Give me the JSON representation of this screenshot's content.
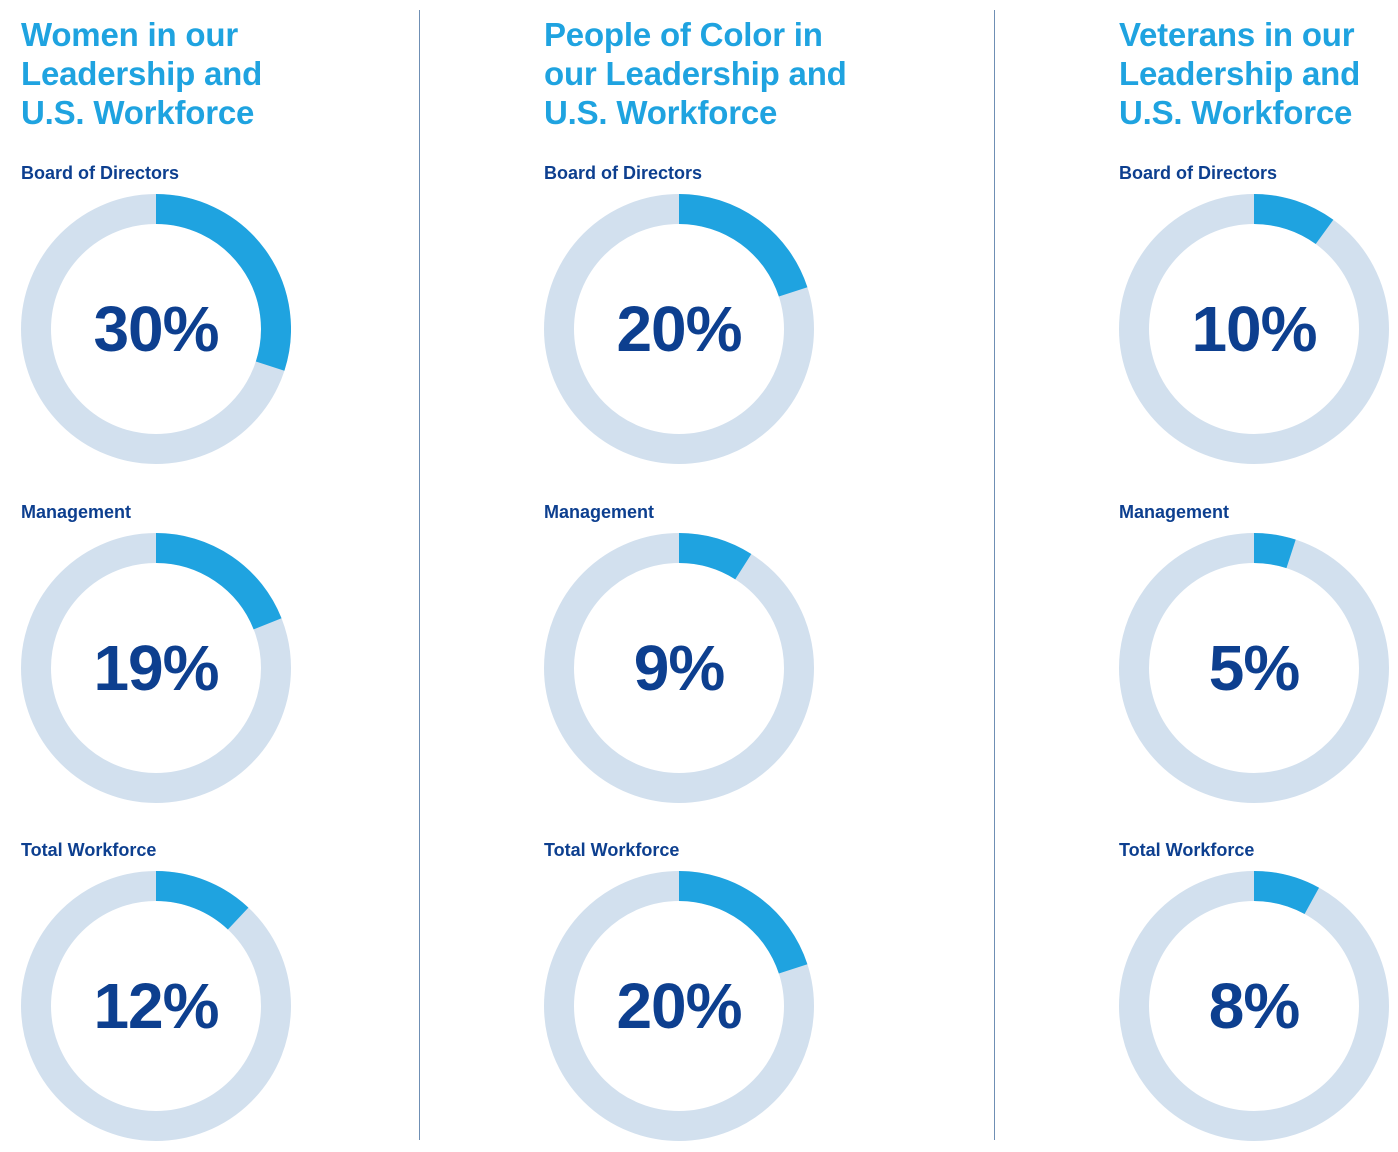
{
  "colors": {
    "title": "#1fa3e0",
    "label": "#0d3f8f",
    "value": "#0d3f8f",
    "track": "#d2e0ee",
    "fill": "#1fa3e0",
    "divider": "#6f8fb4"
  },
  "chart_data": [
    {
      "type": "donut",
      "title": "Women in our\nLeadership and\nU.S. Workforce",
      "categories": [
        "Board of Directors",
        "Management",
        "Total Workforce"
      ],
      "values": [
        30,
        19,
        12
      ],
      "value_labels": [
        "30%",
        "19%",
        "12%"
      ],
      "unit": "%",
      "ylim": [
        0,
        100
      ]
    },
    {
      "type": "donut",
      "title": "People of Color in\nour Leadership and\nU.S. Workforce",
      "categories": [
        "Board of Directors",
        "Management",
        "Total Workforce"
      ],
      "values": [
        20,
        9,
        20
      ],
      "value_labels": [
        "20%",
        "9%",
        "20%"
      ],
      "unit": "%",
      "ylim": [
        0,
        100
      ]
    },
    {
      "type": "donut",
      "title": "Veterans in our\nLeadership and\nU.S. Workforce",
      "categories": [
        "Board of Directors",
        "Management",
        "Total Workforce"
      ],
      "values": [
        10,
        5,
        8
      ],
      "value_labels": [
        "10%",
        "5%",
        "8%"
      ],
      "unit": "%",
      "ylim": [
        0,
        100
      ]
    }
  ]
}
